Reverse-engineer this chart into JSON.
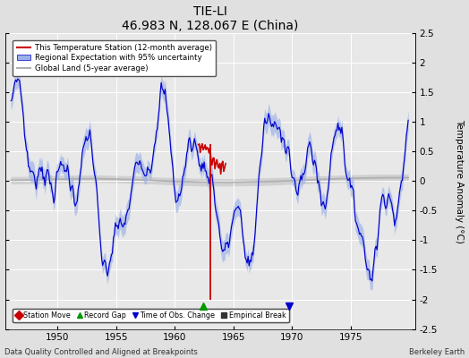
{
  "title": "TIE-LI",
  "subtitle": "46.983 N, 128.067 E (China)",
  "ylabel": "Temperature Anomaly (°C)",
  "xlabel_bottom": "Data Quality Controlled and Aligned at Breakpoints",
  "xlabel_right": "Berkeley Earth",
  "ylim": [
    -2.5,
    2.5
  ],
  "xlim": [
    1945.5,
    1980.5
  ],
  "xticks": [
    1950,
    1955,
    1960,
    1965,
    1970,
    1975
  ],
  "yticks": [
    -2.5,
    -2,
    -1.5,
    -1,
    -0.5,
    0,
    0.5,
    1,
    1.5,
    2,
    2.5
  ],
  "bg_color": "#e0e0e0",
  "plot_bg_color": "#e8e8e8",
  "regional_color": "#0000cc",
  "regional_band_color": "#9ab0e8",
  "global_color": "#b0b0b0",
  "station_color": "#cc0000",
  "record_gap_x": 1962.42,
  "record_gap_y": -2.1,
  "obs_change_x": 1969.75,
  "obs_change_y": -2.1
}
